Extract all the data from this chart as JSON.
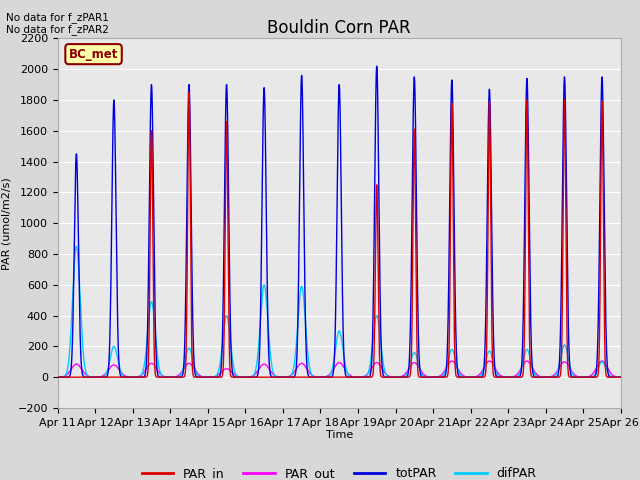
{
  "title": "Bouldin Corn PAR",
  "ylabel": "PAR (umol/m2/s)",
  "xlabel": "Time",
  "ylim": [
    -200,
    2200
  ],
  "xlim": [
    0,
    15
  ],
  "x_tick_labels": [
    "Apr 11",
    "Apr 12",
    "Apr 13",
    "Apr 14",
    "Apr 15",
    "Apr 16",
    "Apr 17",
    "Apr 18",
    "Apr 19",
    "Apr 20",
    "Apr 21",
    "Apr 22",
    "Apr 23",
    "Apr 24",
    "Apr 25",
    "Apr 26"
  ],
  "annotation_text": "No data for f_zPAR1\nNo data for f_zPAR2",
  "legend_label_box": "BC_met",
  "legend_entries": [
    "PAR_in",
    "PAR_out",
    "totPAR",
    "difPAR"
  ],
  "legend_colors": [
    "#dd0000",
    "#ff00ff",
    "#0000dd",
    "#00ccff"
  ],
  "background_color": "#d8d8d8",
  "plot_bg_color": "#e8e8e8",
  "grid_color": "#ffffff",
  "title_fontsize": 12,
  "totPAR_peaks": [
    1450,
    1800,
    1900,
    1900,
    1900,
    1880,
    1960,
    1900,
    2020,
    1950,
    1930,
    1870,
    1940,
    1950,
    1950
  ],
  "difPAR_peaks": [
    850,
    200,
    490,
    190,
    400,
    600,
    590,
    300,
    400,
    160,
    180,
    170,
    180,
    210,
    100
  ],
  "PAR_out_peaks": [
    85,
    80,
    90,
    90,
    55,
    85,
    90,
    95,
    95,
    95,
    105,
    105,
    105,
    100,
    105
  ],
  "PAR_in_peaks": [
    0,
    0,
    1600,
    1850,
    1660,
    0,
    0,
    0,
    1250,
    1610,
    1780,
    1790,
    1800,
    1800,
    1790
  ]
}
